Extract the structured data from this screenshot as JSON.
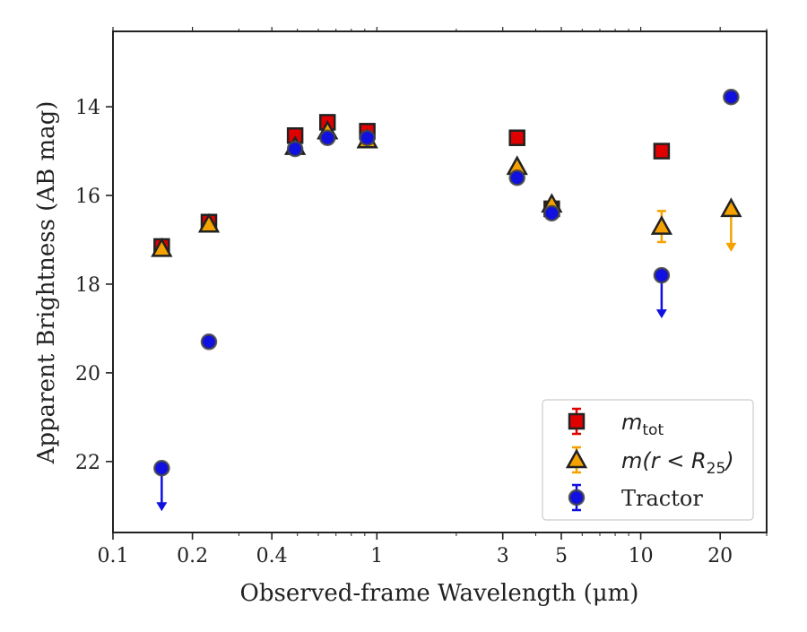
{
  "chart_data": {
    "type": "scatter",
    "title": "",
    "xlabel": "Observed-frame Wavelength (μm)",
    "ylabel": "Apparent Brightness (AB mag)",
    "xscale": "log",
    "xlim": [
      0.1,
      30
    ],
    "ylim": [
      23.6,
      12.3
    ],
    "y_inverted": true,
    "xticks": [
      0.1,
      0.2,
      0.4,
      1,
      3,
      5,
      10,
      20
    ],
    "xtick_labels": [
      "0.1",
      "0.2",
      "0.4",
      "1",
      "3",
      "5",
      "10",
      "20"
    ],
    "yticks": [
      14,
      16,
      18,
      20,
      22
    ],
    "ytick_labels": [
      "14",
      "16",
      "18",
      "20",
      "22"
    ],
    "grid": false,
    "legend_position": "lower-right",
    "legend": [
      {
        "label_base": "m",
        "label_sub": "tot",
        "marker": "square",
        "color": "#e00000"
      },
      {
        "label_text": "m(r < R",
        "label_sub": "25",
        "label_close": ")",
        "marker": "triangle",
        "color": "#f5a200"
      },
      {
        "label_text": "Tractor",
        "marker": "circle",
        "color": "#1010e0"
      }
    ],
    "series": [
      {
        "marker": "square",
        "color": "#e00000",
        "points": [
          {
            "x": 0.153,
            "y": 17.15,
            "err": 0.1
          },
          {
            "x": 0.231,
            "y": 16.6,
            "err": 0.1
          },
          {
            "x": 0.49,
            "y": 14.65,
            "err": 0.05
          },
          {
            "x": 0.65,
            "y": 14.35,
            "err": 0.05
          },
          {
            "x": 0.92,
            "y": 14.55,
            "err": 0.05
          },
          {
            "x": 3.4,
            "y": 14.7,
            "err": 0.05
          },
          {
            "x": 4.6,
            "y": 16.3,
            "err": 0.05
          },
          {
            "x": 12.0,
            "y": 15.0,
            "err": 0.05
          }
        ]
      },
      {
        "marker": "triangle",
        "color": "#f5a200",
        "points": [
          {
            "x": 0.153,
            "y": 17.2,
            "err": 0.05
          },
          {
            "x": 0.231,
            "y": 16.65,
            "err": 0.05
          },
          {
            "x": 0.49,
            "y": 14.9,
            "err": 0.05
          },
          {
            "x": 0.65,
            "y": 14.55,
            "err": 0.05
          },
          {
            "x": 0.92,
            "y": 14.75,
            "err": 0.05
          },
          {
            "x": 3.4,
            "y": 15.35,
            "err": 0.05
          },
          {
            "x": 4.6,
            "y": 16.2,
            "err": 0.05
          },
          {
            "x": 12.0,
            "y": 16.7,
            "err": 0.35
          },
          {
            "x": 22.0,
            "y": 16.3,
            "upper_limit": true
          }
        ]
      },
      {
        "marker": "circle",
        "color": "#1010e0",
        "points": [
          {
            "x": 0.153,
            "y": 22.15,
            "upper_limit": true
          },
          {
            "x": 0.231,
            "y": 19.3,
            "err": 0.05
          },
          {
            "x": 0.49,
            "y": 14.95,
            "err": 0.05
          },
          {
            "x": 0.65,
            "y": 14.7,
            "err": 0.05
          },
          {
            "x": 0.92,
            "y": 14.7,
            "err": 0.05
          },
          {
            "x": 3.4,
            "y": 15.6,
            "err": 0.05
          },
          {
            "x": 4.6,
            "y": 16.4,
            "err": 0.05
          },
          {
            "x": 12.0,
            "y": 17.8,
            "upper_limit": true
          },
          {
            "x": 22.0,
            "y": 13.78,
            "err": 0.05
          }
        ]
      }
    ]
  }
}
